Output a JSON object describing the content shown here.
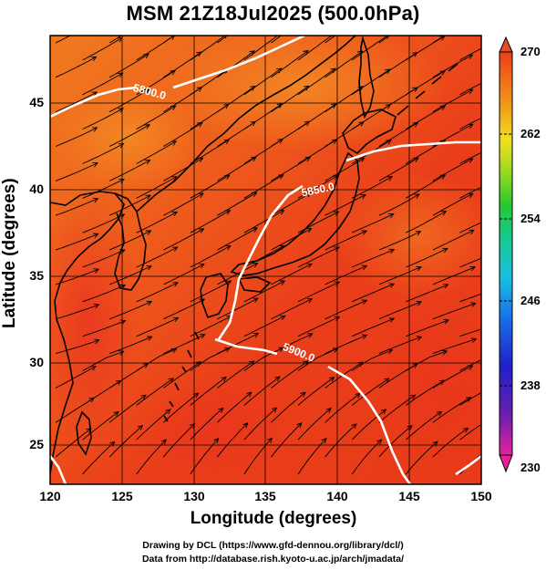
{
  "title": "MSM 21Z18Jul2025 (500.0hPa)",
  "axes": {
    "xlabel": "Longitude (degrees)",
    "ylabel": "Latitude  (degrees)",
    "x_ticks": [
      "120",
      "125",
      "130",
      "135",
      "140",
      "145",
      "150"
    ],
    "y_ticks": [
      "25",
      "30",
      "35",
      "40",
      "45"
    ]
  },
  "colorbar": {
    "ticks": [
      "270",
      "262",
      "254",
      "246",
      "238",
      "230"
    ],
    "range": [
      230,
      270
    ],
    "colors": [
      "#e8208c",
      "#7a1fa8",
      "#2424c8",
      "#1a6fe0",
      "#18b4e0",
      "#14c8a0",
      "#20c840",
      "#a0d820",
      "#e8e020",
      "#f0a018",
      "#f06018",
      "#e83818"
    ]
  },
  "contours": [
    {
      "label": "5800.0"
    },
    {
      "label": "5850.0"
    },
    {
      "label": "5900.0"
    }
  ],
  "credits": {
    "line1": "Drawing by DCL (https://www.gfd-dennou.org/library/dcl/)",
    "line2": "Data from http://database.rish.kyoto-u.ac.jp/arch/jmadata/"
  }
}
